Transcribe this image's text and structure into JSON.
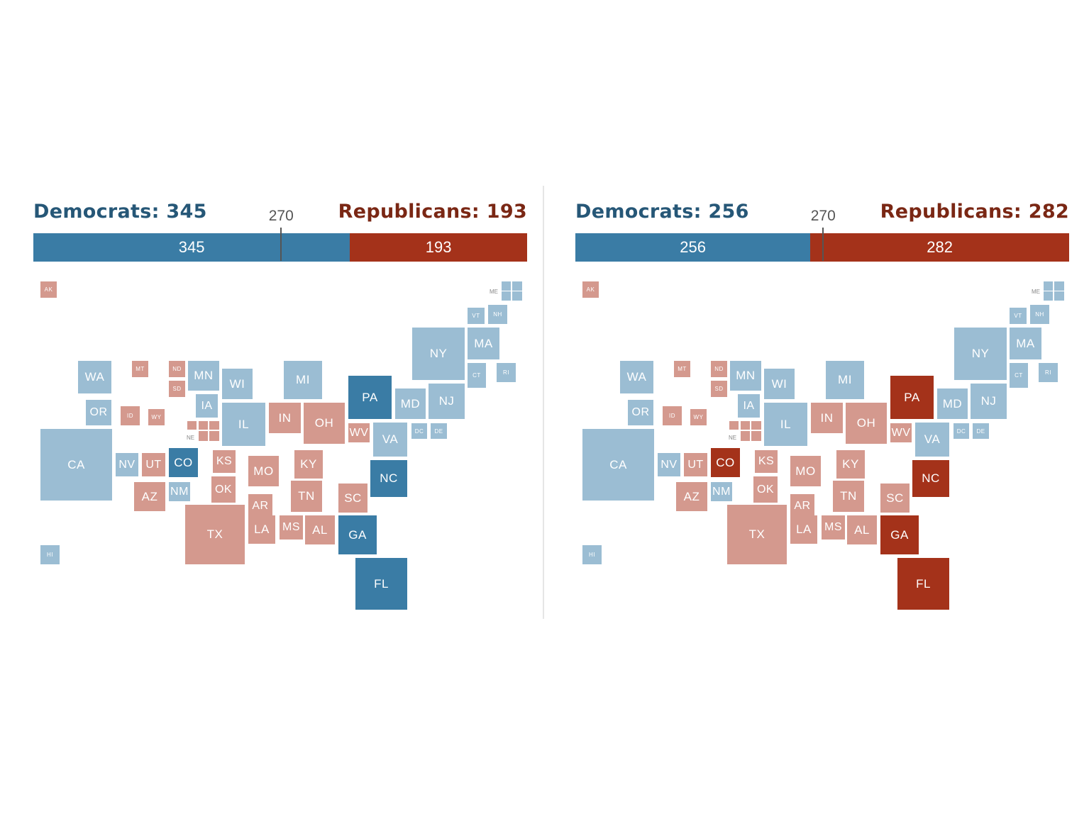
{
  "colors": {
    "dem_light": "#9bbdd3",
    "dem_dark": "#3a7ca5",
    "rep_light": "#d4998e",
    "rep_dark": "#a4321a"
  },
  "maps": [
    {
      "dem_title": "Democrats: 345",
      "rep_title": "Republicans: 193",
      "dem_votes": 345,
      "rep_votes": 193,
      "dem_label": "345",
      "rep_label": "193",
      "threshold": 270,
      "threshold_label": "270",
      "tossup_winner": "D"
    },
    {
      "dem_title": "Democrats: 256",
      "rep_title": "Republicans: 282",
      "dem_votes": 256,
      "rep_votes": 282,
      "dem_label": "256",
      "rep_label": "282",
      "threshold": 270,
      "threshold_label": "270",
      "tossup_winner": "R"
    }
  ],
  "states": [
    {
      "abbr": "AK",
      "lean": "R"
    },
    {
      "abbr": "ME",
      "lean": "D"
    },
    {
      "abbr": "VT",
      "lean": "D"
    },
    {
      "abbr": "NH",
      "lean": "D"
    },
    {
      "abbr": "NY",
      "lean": "D"
    },
    {
      "abbr": "MA",
      "lean": "D"
    },
    {
      "abbr": "CT",
      "lean": "D"
    },
    {
      "abbr": "RI",
      "lean": "D"
    },
    {
      "abbr": "WA",
      "lean": "D"
    },
    {
      "abbr": "MT",
      "lean": "R"
    },
    {
      "abbr": "ND",
      "lean": "R"
    },
    {
      "abbr": "SD",
      "lean": "R"
    },
    {
      "abbr": "MN",
      "lean": "D"
    },
    {
      "abbr": "WI",
      "lean": "D"
    },
    {
      "abbr": "MI",
      "lean": "D"
    },
    {
      "abbr": "PA",
      "lean": "T"
    },
    {
      "abbr": "MD",
      "lean": "D"
    },
    {
      "abbr": "NJ",
      "lean": "D"
    },
    {
      "abbr": "OR",
      "lean": "D"
    },
    {
      "abbr": "ID",
      "lean": "R"
    },
    {
      "abbr": "WY",
      "lean": "R"
    },
    {
      "abbr": "IA",
      "lean": "D"
    },
    {
      "abbr": "IL",
      "lean": "D"
    },
    {
      "abbr": "NE",
      "lean": "R"
    },
    {
      "abbr": "IN",
      "lean": "R"
    },
    {
      "abbr": "OH",
      "lean": "R"
    },
    {
      "abbr": "WV",
      "lean": "R"
    },
    {
      "abbr": "VA",
      "lean": "D"
    },
    {
      "abbr": "DC",
      "lean": "D"
    },
    {
      "abbr": "DE",
      "lean": "D"
    },
    {
      "abbr": "CA",
      "lean": "D"
    },
    {
      "abbr": "NV",
      "lean": "D"
    },
    {
      "abbr": "UT",
      "lean": "R"
    },
    {
      "abbr": "CO",
      "lean": "T"
    },
    {
      "abbr": "KS",
      "lean": "R"
    },
    {
      "abbr": "MO",
      "lean": "R"
    },
    {
      "abbr": "KY",
      "lean": "R"
    },
    {
      "abbr": "AZ",
      "lean": "R"
    },
    {
      "abbr": "NM",
      "lean": "D"
    },
    {
      "abbr": "OK",
      "lean": "R"
    },
    {
      "abbr": "AR",
      "lean": "R"
    },
    {
      "abbr": "TN",
      "lean": "R"
    },
    {
      "abbr": "SC",
      "lean": "R"
    },
    {
      "abbr": "NC",
      "lean": "T"
    },
    {
      "abbr": "TX",
      "lean": "R"
    },
    {
      "abbr": "LA",
      "lean": "R"
    },
    {
      "abbr": "MS",
      "lean": "R"
    },
    {
      "abbr": "AL",
      "lean": "R"
    },
    {
      "abbr": "GA",
      "lean": "T"
    },
    {
      "abbr": "FL",
      "lean": "T"
    },
    {
      "abbr": "HI",
      "lean": "D"
    }
  ]
}
